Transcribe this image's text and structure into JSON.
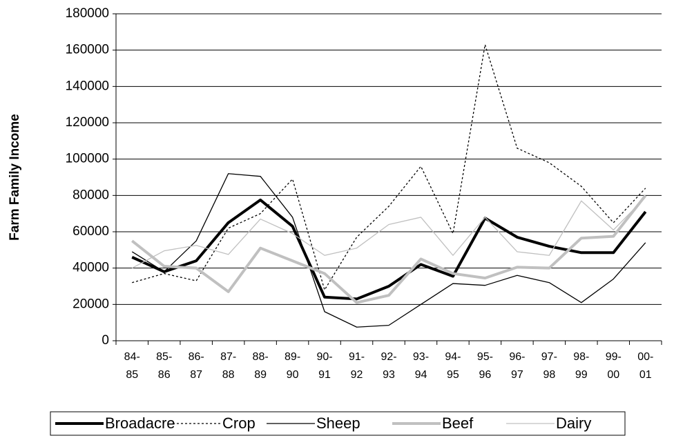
{
  "chart_data": {
    "type": "line",
    "y_label": "Farm Family Income",
    "categories": [
      "84-85",
      "85-86",
      "86-87",
      "87-88",
      "88-89",
      "89-90",
      "90-91",
      "91-92",
      "92-93",
      "93-94",
      "94-95",
      "95-96",
      "96-97",
      "97-98",
      "98-99",
      "99-00",
      "00-01"
    ],
    "ylim": [
      0,
      180000
    ],
    "yticks": [
      0,
      20000,
      40000,
      60000,
      80000,
      100000,
      120000,
      140000,
      160000,
      180000
    ],
    "grid": true,
    "legend": "bottom",
    "series": [
      {
        "name": "Broadacre",
        "color": "#000000",
        "width": 4,
        "dashed": false,
        "values": [
          46000,
          38000,
          44000,
          65000,
          77500,
          63000,
          24000,
          23000,
          30000,
          42000,
          35500,
          67500,
          57000,
          52000,
          48500,
          48500,
          71000
        ]
      },
      {
        "name": "Crop",
        "color": "#000000",
        "width": 1.3,
        "dashed": true,
        "values": [
          32000,
          37000,
          33000,
          62000,
          70000,
          89000,
          28000,
          57000,
          74000,
          96000,
          59000,
          163000,
          106000,
          98000,
          85000,
          65000,
          84000
        ]
      },
      {
        "name": "Sheep",
        "color": "#000000",
        "width": 1.3,
        "dashed": false,
        "values": [
          49000,
          38000,
          55000,
          92000,
          90500,
          68000,
          16000,
          7500,
          8500,
          20000,
          31500,
          30500,
          36000,
          32000,
          21000,
          34000,
          54000
        ]
      },
      {
        "name": "Beef",
        "color": "#c0c0c0",
        "width": 4,
        "dashed": false,
        "values": [
          55000,
          41000,
          40000,
          27000,
          51000,
          44000,
          37000,
          21000,
          25000,
          45000,
          37000,
          34500,
          40500,
          40000,
          56500,
          57500,
          80000
        ]
      },
      {
        "name": "Dairy",
        "color": "#c0c0c0",
        "width": 1.3,
        "dashed": false,
        "values": [
          40000,
          49500,
          52500,
          47500,
          67000,
          59000,
          47000,
          51000,
          64000,
          68000,
          47000,
          68000,
          49000,
          47000,
          77000,
          61000,
          79000
        ]
      }
    ]
  }
}
